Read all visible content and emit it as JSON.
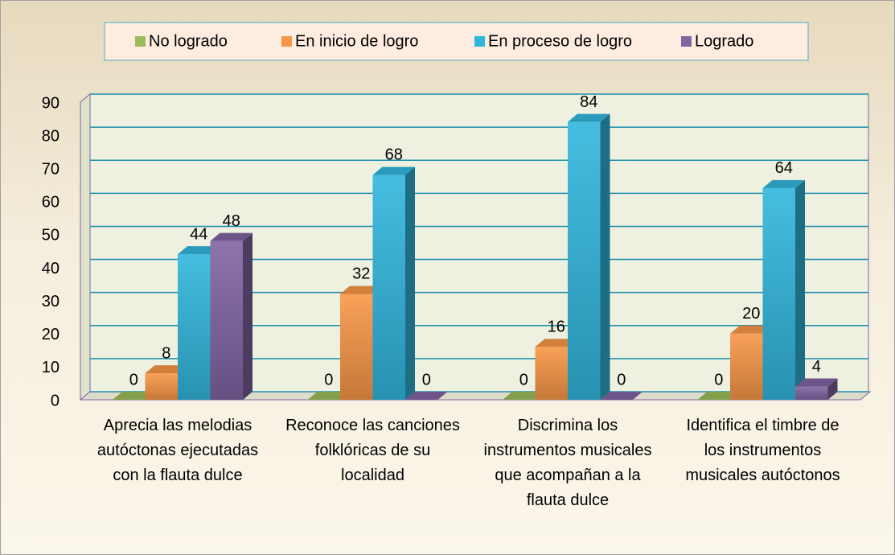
{
  "chart_data": {
    "type": "bar3d",
    "categories": [
      "Aprecia las melodias autóctonas ejecutadas con la flauta dulce",
      "Reconoce las canciones folklóricas de su localidad",
      "Discrimina los instrumentos musicales que acompañan a la flauta dulce",
      "Identifica el timbre de los instrumentos musicales autóctonos"
    ],
    "series": [
      {
        "name": "No logrado",
        "color": "#9bbb59",
        "values": [
          0,
          0,
          0,
          0
        ]
      },
      {
        "name": "En inicio de logro",
        "color": "#f79646",
        "values": [
          8,
          32,
          16,
          20
        ]
      },
      {
        "name": "En proceso de logro",
        "color": "#31b6dc",
        "values": [
          44,
          68,
          84,
          64
        ]
      },
      {
        "name": "Logrado",
        "color": "#8064a2",
        "values": [
          48,
          0,
          0,
          4
        ]
      }
    ],
    "ylim": [
      0,
      90
    ],
    "yticks": [
      0,
      10,
      20,
      30,
      40,
      50,
      60,
      70,
      80,
      90
    ],
    "grid": true,
    "legend": "top"
  }
}
